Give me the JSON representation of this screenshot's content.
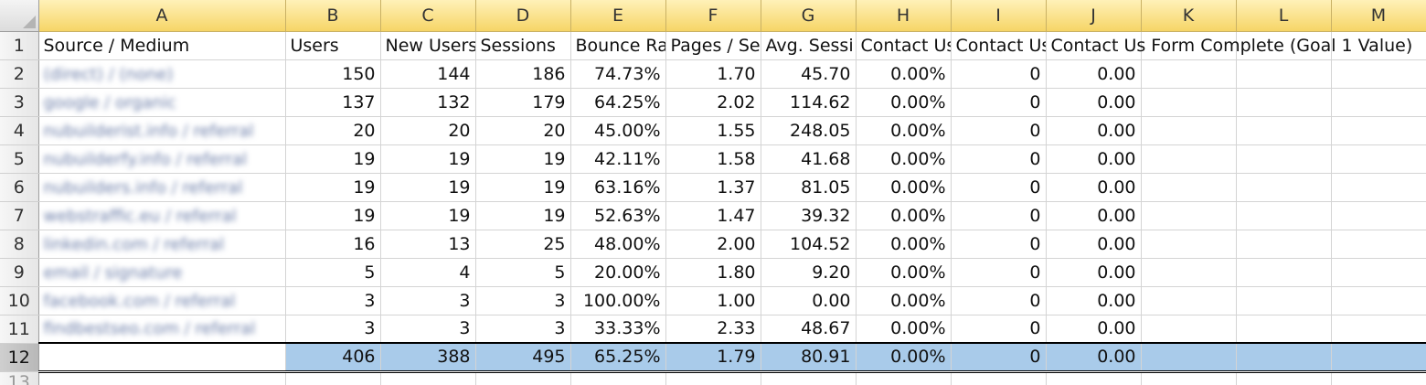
{
  "columns": [
    "A",
    "B",
    "C",
    "D",
    "E",
    "F",
    "G",
    "H",
    "I",
    "J",
    "K",
    "L",
    "M"
  ],
  "header_row": {
    "num": "1",
    "cells": [
      "Source / Medium",
      "Users",
      "New Users",
      "Sessions",
      "Bounce Ra",
      "Pages / Se",
      "Avg. Sessi",
      "Contact Us",
      "Contact Us",
      "Contact Us",
      "",
      "",
      ""
    ],
    "overflow_text": "Contact Us Form Complete (Goal 1 Value)"
  },
  "rows": [
    {
      "num": "2",
      "source": "(direct) / (none)",
      "users": "150",
      "new_users": "144",
      "sessions": "186",
      "bounce": "74.73%",
      "pages": "1.70",
      "avg": "45.70",
      "h": "0.00%",
      "i": "0",
      "j": "0.00"
    },
    {
      "num": "3",
      "source": "google / organic",
      "users": "137",
      "new_users": "132",
      "sessions": "179",
      "bounce": "64.25%",
      "pages": "2.02",
      "avg": "114.62",
      "h": "0.00%",
      "i": "0",
      "j": "0.00"
    },
    {
      "num": "4",
      "source": "nubuilderist.info / referral",
      "users": "20",
      "new_users": "20",
      "sessions": "20",
      "bounce": "45.00%",
      "pages": "1.55",
      "avg": "248.05",
      "h": "0.00%",
      "i": "0",
      "j": "0.00"
    },
    {
      "num": "5",
      "source": "nubuilderfy.info / referral",
      "users": "19",
      "new_users": "19",
      "sessions": "19",
      "bounce": "42.11%",
      "pages": "1.58",
      "avg": "41.68",
      "h": "0.00%",
      "i": "0",
      "j": "0.00"
    },
    {
      "num": "6",
      "source": "nubuilders.info / referral",
      "users": "19",
      "new_users": "19",
      "sessions": "19",
      "bounce": "63.16%",
      "pages": "1.37",
      "avg": "81.05",
      "h": "0.00%",
      "i": "0",
      "j": "0.00"
    },
    {
      "num": "7",
      "source": "webstraffic.eu / referral",
      "users": "19",
      "new_users": "19",
      "sessions": "19",
      "bounce": "52.63%",
      "pages": "1.47",
      "avg": "39.32",
      "h": "0.00%",
      "i": "0",
      "j": "0.00"
    },
    {
      "num": "8",
      "source": "linkedin.com / referral",
      "users": "16",
      "new_users": "13",
      "sessions": "25",
      "bounce": "48.00%",
      "pages": "2.00",
      "avg": "104.52",
      "h": "0.00%",
      "i": "0",
      "j": "0.00"
    },
    {
      "num": "9",
      "source": "email / signature",
      "users": "5",
      "new_users": "4",
      "sessions": "5",
      "bounce": "20.00%",
      "pages": "1.80",
      "avg": "9.20",
      "h": "0.00%",
      "i": "0",
      "j": "0.00"
    },
    {
      "num": "10",
      "source": "facebook.com / referral",
      "users": "3",
      "new_users": "3",
      "sessions": "3",
      "bounce": "100.00%",
      "pages": "1.00",
      "avg": "0.00",
      "h": "0.00%",
      "i": "0",
      "j": "0.00"
    },
    {
      "num": "11",
      "source": "findbestseo.com / referral",
      "users": "3",
      "new_users": "3",
      "sessions": "3",
      "bounce": "33.33%",
      "pages": "2.33",
      "avg": "48.67",
      "h": "0.00%",
      "i": "0",
      "j": "0.00"
    }
  ],
  "total_row": {
    "num": "12",
    "users": "406",
    "new_users": "388",
    "sessions": "495",
    "bounce": "65.25%",
    "pages": "1.79",
    "avg": "80.91",
    "h": "0.00%",
    "i": "0",
    "j": "0.00"
  },
  "partial_row": {
    "num": "13"
  },
  "colors": {
    "column_header": "#f6d567",
    "total_fill": "#a9cbea"
  }
}
